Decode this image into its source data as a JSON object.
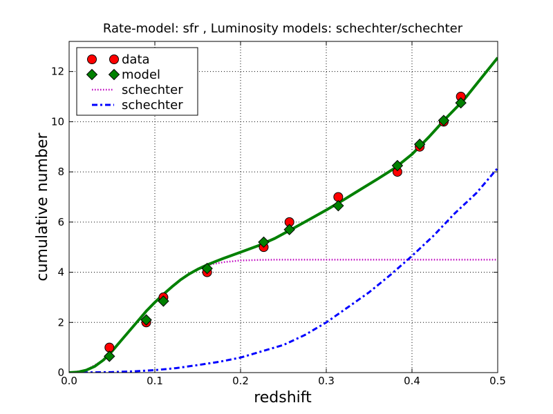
{
  "chart_data": {
    "type": "line",
    "title": "Rate-model: sfr , Luminosity models: schechter/schechter",
    "xlabel": "redshift",
    "ylabel": "cumulative number",
    "xlim": [
      0.0,
      0.5
    ],
    "ylim": [
      0,
      13.2
    ],
    "xticks": [
      0.0,
      0.1,
      0.2,
      0.3,
      0.4,
      0.5
    ],
    "xtick_labels": [
      "0.0",
      "0.1",
      "0.2",
      "0.3",
      "0.4",
      "0.5"
    ],
    "yticks": [
      0,
      2,
      4,
      6,
      8,
      10,
      12
    ],
    "ytick_labels": [
      "0",
      "2",
      "4",
      "6",
      "8",
      "10",
      "12"
    ],
    "grid": true,
    "legend_position": "top-left",
    "series": [
      {
        "name": "data",
        "kind": "markers",
        "marker": "circle",
        "color": "#ff0000",
        "x": [
          0.047,
          0.09,
          0.11,
          0.161,
          0.227,
          0.257,
          0.314,
          0.383,
          0.409,
          0.437,
          0.457
        ],
        "y": [
          1,
          2,
          3,
          4,
          5,
          6,
          7,
          8,
          9,
          10,
          11
        ]
      },
      {
        "name": "model",
        "kind": "markers+line",
        "marker": "diamond",
        "color": "#008000",
        "x": [
          0.047,
          0.09,
          0.11,
          0.161,
          0.227,
          0.257,
          0.314,
          0.383,
          0.409,
          0.437,
          0.457
        ],
        "y": [
          0.65,
          2.1,
          2.85,
          4.15,
          5.2,
          5.7,
          6.65,
          8.25,
          9.1,
          10.05,
          10.75
        ],
        "curve_x": [
          0.0,
          0.01,
          0.02,
          0.03,
          0.04,
          0.05,
          0.06,
          0.07,
          0.08,
          0.09,
          0.1,
          0.11,
          0.12,
          0.13,
          0.14,
          0.15,
          0.16,
          0.17,
          0.18,
          0.2,
          0.22,
          0.24,
          0.26,
          0.28,
          0.3,
          0.32,
          0.34,
          0.36,
          0.38,
          0.4,
          0.42,
          0.44,
          0.46,
          0.48,
          0.5
        ],
        "curve_y": [
          0.0,
          0.02,
          0.1,
          0.25,
          0.5,
          0.85,
          1.25,
          1.65,
          2.05,
          2.45,
          2.8,
          3.12,
          3.42,
          3.7,
          3.93,
          4.12,
          4.28,
          4.42,
          4.55,
          4.8,
          5.05,
          5.35,
          5.72,
          6.1,
          6.48,
          6.88,
          7.3,
          7.72,
          8.15,
          8.7,
          9.4,
          10.15,
          10.85,
          11.7,
          12.55
        ]
      },
      {
        "name": "schechter",
        "kind": "line",
        "style": "dotted",
        "color": "#bf00bf",
        "x": [
          0.0,
          0.02,
          0.04,
          0.06,
          0.08,
          0.1,
          0.12,
          0.14,
          0.16,
          0.18,
          0.2,
          0.22,
          0.24,
          0.26,
          0.28,
          0.3,
          0.35,
          0.4,
          0.45,
          0.5
        ],
        "y": [
          0.0,
          0.1,
          0.5,
          1.25,
          2.05,
          2.8,
          3.42,
          3.93,
          4.28,
          4.4,
          4.47,
          4.49,
          4.5,
          4.5,
          4.5,
          4.5,
          4.5,
          4.5,
          4.5,
          4.5
        ]
      },
      {
        "name": "schechter",
        "kind": "line",
        "style": "dashdot",
        "color": "#0000ff",
        "x": [
          0.0,
          0.05,
          0.075,
          0.1,
          0.125,
          0.15,
          0.175,
          0.2,
          0.225,
          0.25,
          0.275,
          0.3,
          0.325,
          0.35,
          0.375,
          0.4,
          0.425,
          0.45,
          0.475,
          0.5
        ],
        "y": [
          0.0,
          0.02,
          0.05,
          0.1,
          0.18,
          0.3,
          0.43,
          0.6,
          0.85,
          1.1,
          1.5,
          2.0,
          2.6,
          3.2,
          3.9,
          4.65,
          5.45,
          6.35,
          7.15,
          8.15
        ]
      }
    ]
  }
}
